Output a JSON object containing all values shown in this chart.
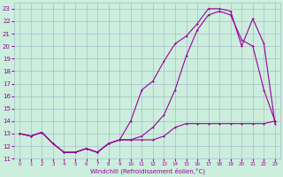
{
  "xlabel": "Windchill (Refroidissement éolien,°C)",
  "bg_color": "#cceedd",
  "grid_color": "#aabbcc",
  "line_color": "#990099",
  "x_hours": [
    0,
    1,
    2,
    3,
    4,
    5,
    6,
    7,
    8,
    9,
    10,
    11,
    12,
    13,
    14,
    15,
    16,
    17,
    18,
    19,
    20,
    21,
    22,
    23
  ],
  "line1": [
    13.0,
    12.8,
    13.1,
    12.2,
    11.5,
    11.5,
    11.8,
    11.5,
    12.2,
    12.5,
    14.0,
    16.5,
    17.2,
    18.8,
    20.2,
    20.8,
    21.8,
    23.0,
    23.0,
    22.8,
    20.0,
    22.2,
    20.2,
    13.8
  ],
  "line2": [
    13.0,
    12.8,
    13.1,
    12.2,
    11.5,
    11.5,
    11.8,
    11.5,
    12.2,
    12.5,
    12.5,
    12.8,
    13.5,
    14.5,
    16.5,
    19.2,
    21.3,
    22.5,
    22.8,
    22.5,
    20.5,
    20.0,
    16.5,
    14.0
  ],
  "line3": [
    13.0,
    12.8,
    13.1,
    12.2,
    11.5,
    11.5,
    11.8,
    11.5,
    12.2,
    12.5,
    12.5,
    12.5,
    12.5,
    12.8,
    13.5,
    13.8,
    13.8,
    13.8,
    13.8,
    13.8,
    13.8,
    13.8,
    13.8,
    14.0
  ],
  "ylim": [
    11,
    23.5
  ],
  "xlim": [
    -0.5,
    23.5
  ],
  "yticks": [
    11,
    12,
    13,
    14,
    15,
    16,
    17,
    18,
    19,
    20,
    21,
    22,
    23
  ],
  "xticks": [
    0,
    1,
    2,
    3,
    4,
    5,
    6,
    7,
    8,
    9,
    10,
    11,
    12,
    13,
    14,
    15,
    16,
    17,
    18,
    19,
    20,
    21,
    22,
    23
  ]
}
